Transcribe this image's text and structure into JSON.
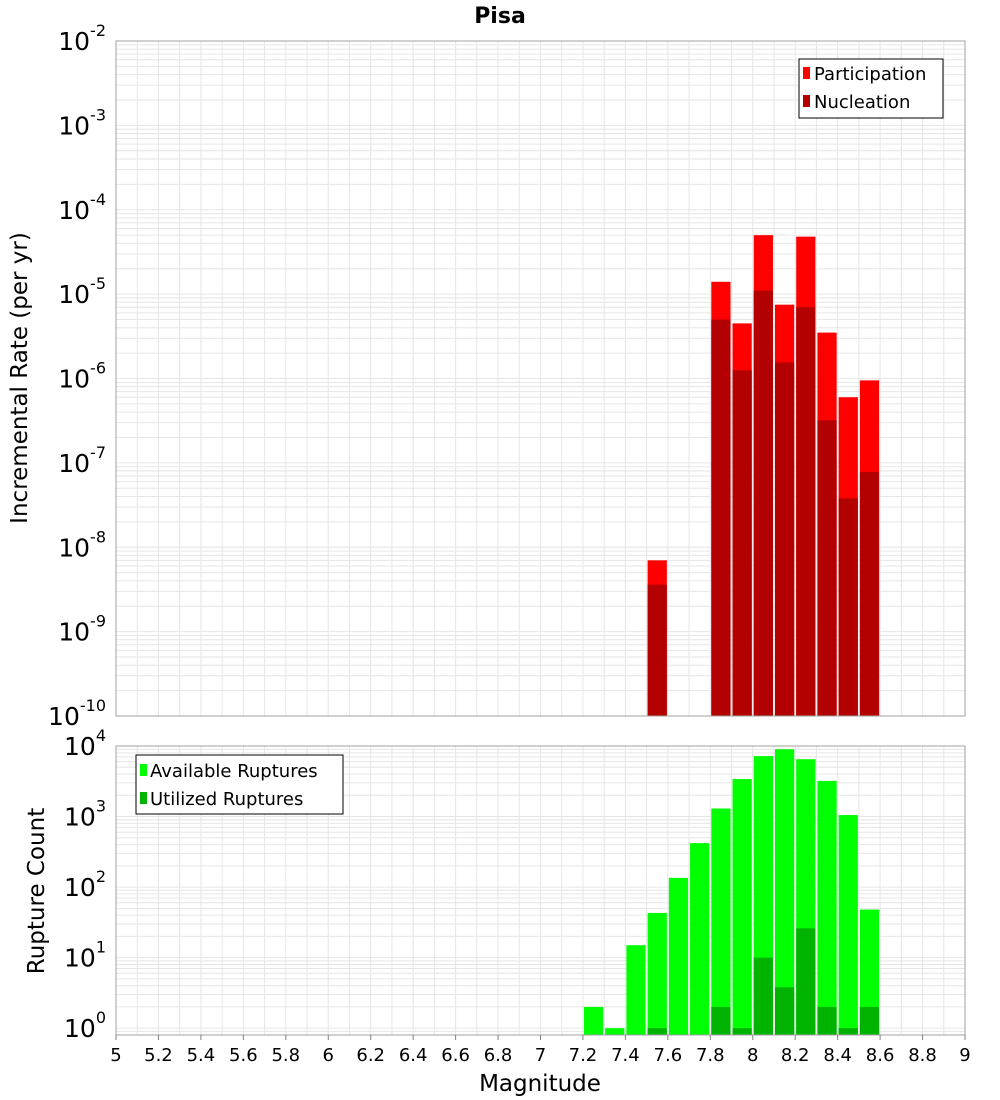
{
  "figure_title": "Pisa",
  "chart_data": [
    {
      "type": "bar",
      "title": "Pisa",
      "ylabel": "Incremental Rate (per yr)",
      "xlabel": "",
      "scale_y": "log",
      "ylim": [
        1e-10,
        0.01
      ],
      "xlim": [
        5,
        9
      ],
      "bin_width": 0.1,
      "y_ticks": [
        {
          "base": "10",
          "exp": "-10",
          "value": 1e-10
        },
        {
          "base": "10",
          "exp": "-9",
          "value": 1e-09
        },
        {
          "base": "10",
          "exp": "-8",
          "value": 1e-08
        },
        {
          "base": "10",
          "exp": "-7",
          "value": 1e-07
        },
        {
          "base": "10",
          "exp": "-6",
          "value": 1e-06
        },
        {
          "base": "10",
          "exp": "-5",
          "value": 1e-05
        },
        {
          "base": "10",
          "exp": "-4",
          "value": 0.0001
        },
        {
          "base": "10",
          "exp": "-3",
          "value": 0.001
        },
        {
          "base": "10",
          "exp": "-2",
          "value": 0.01
        }
      ],
      "legend": {
        "position": "top-right"
      },
      "series": [
        {
          "name": "Participation",
          "color": "#ff0000",
          "points": [
            {
              "x": 7.55,
              "y": 7e-09
            },
            {
              "x": 7.85,
              "y": 1.4e-05
            },
            {
              "x": 7.95,
              "y": 4.5e-06
            },
            {
              "x": 8.05,
              "y": 5e-05
            },
            {
              "x": 8.15,
              "y": 7.5e-06
            },
            {
              "x": 8.25,
              "y": 4.8e-05
            },
            {
              "x": 8.35,
              "y": 3.5e-06
            },
            {
              "x": 8.45,
              "y": 6e-07
            },
            {
              "x": 8.55,
              "y": 9.5e-07
            }
          ]
        },
        {
          "name": "Nucleation",
          "color": "#b30000",
          "points": [
            {
              "x": 7.55,
              "y": 3.6e-09
            },
            {
              "x": 7.85,
              "y": 5e-06
            },
            {
              "x": 7.95,
              "y": 1.25e-06
            },
            {
              "x": 8.05,
              "y": 1.1e-05
            },
            {
              "x": 8.15,
              "y": 1.55e-06
            },
            {
              "x": 8.25,
              "y": 7e-06
            },
            {
              "x": 8.35,
              "y": 3.2e-07
            },
            {
              "x": 8.45,
              "y": 3.8e-08
            },
            {
              "x": 8.55,
              "y": 7.8e-08
            }
          ]
        }
      ]
    },
    {
      "type": "bar",
      "ylabel": "Rupture Count",
      "xlabel": "Magnitude",
      "scale_y": "log",
      "ylim": [
        0.8,
        10000.0
      ],
      "xlim": [
        5,
        9
      ],
      "bin_width": 0.1,
      "x_ticks": [
        "5",
        "5.2",
        "5.4",
        "5.6",
        "5.8",
        "6",
        "6.2",
        "6.4",
        "6.6",
        "6.8",
        "7",
        "7.2",
        "7.4",
        "7.6",
        "7.8",
        "8",
        "8.2",
        "8.4",
        "8.6",
        "8.8",
        "9"
      ],
      "y_ticks": [
        {
          "base": "10",
          "exp": "0",
          "value": 1
        },
        {
          "base": "10",
          "exp": "1",
          "value": 10
        },
        {
          "base": "10",
          "exp": "2",
          "value": 100
        },
        {
          "base": "10",
          "exp": "3",
          "value": 1000
        },
        {
          "base": "10",
          "exp": "4",
          "value": 10000
        }
      ],
      "legend": {
        "position": "top-left"
      },
      "series": [
        {
          "name": "Available Ruptures",
          "color": "#00ff00",
          "points": [
            {
              "x": 7.25,
              "y": 2
            },
            {
              "x": 7.35,
              "y": 1
            },
            {
              "x": 7.45,
              "y": 15
            },
            {
              "x": 7.55,
              "y": 43
            },
            {
              "x": 7.65,
              "y": 135
            },
            {
              "x": 7.75,
              "y": 420
            },
            {
              "x": 7.85,
              "y": 1300
            },
            {
              "x": 7.95,
              "y": 3400
            },
            {
              "x": 8.05,
              "y": 7200
            },
            {
              "x": 8.15,
              "y": 9000
            },
            {
              "x": 8.25,
              "y": 6500
            },
            {
              "x": 8.35,
              "y": 3200
            },
            {
              "x": 8.45,
              "y": 1050
            },
            {
              "x": 8.55,
              "y": 48
            }
          ]
        },
        {
          "name": "Utilized Ruptures",
          "color": "#00b300",
          "points": [
            {
              "x": 7.55,
              "y": 1
            },
            {
              "x": 7.85,
              "y": 2
            },
            {
              "x": 7.95,
              "y": 1
            },
            {
              "x": 8.05,
              "y": 10
            },
            {
              "x": 8.15,
              "y": 3.8
            },
            {
              "x": 8.25,
              "y": 26
            },
            {
              "x": 8.35,
              "y": 2
            },
            {
              "x": 8.45,
              "y": 1
            },
            {
              "x": 8.55,
              "y": 2
            }
          ]
        }
      ]
    }
  ]
}
